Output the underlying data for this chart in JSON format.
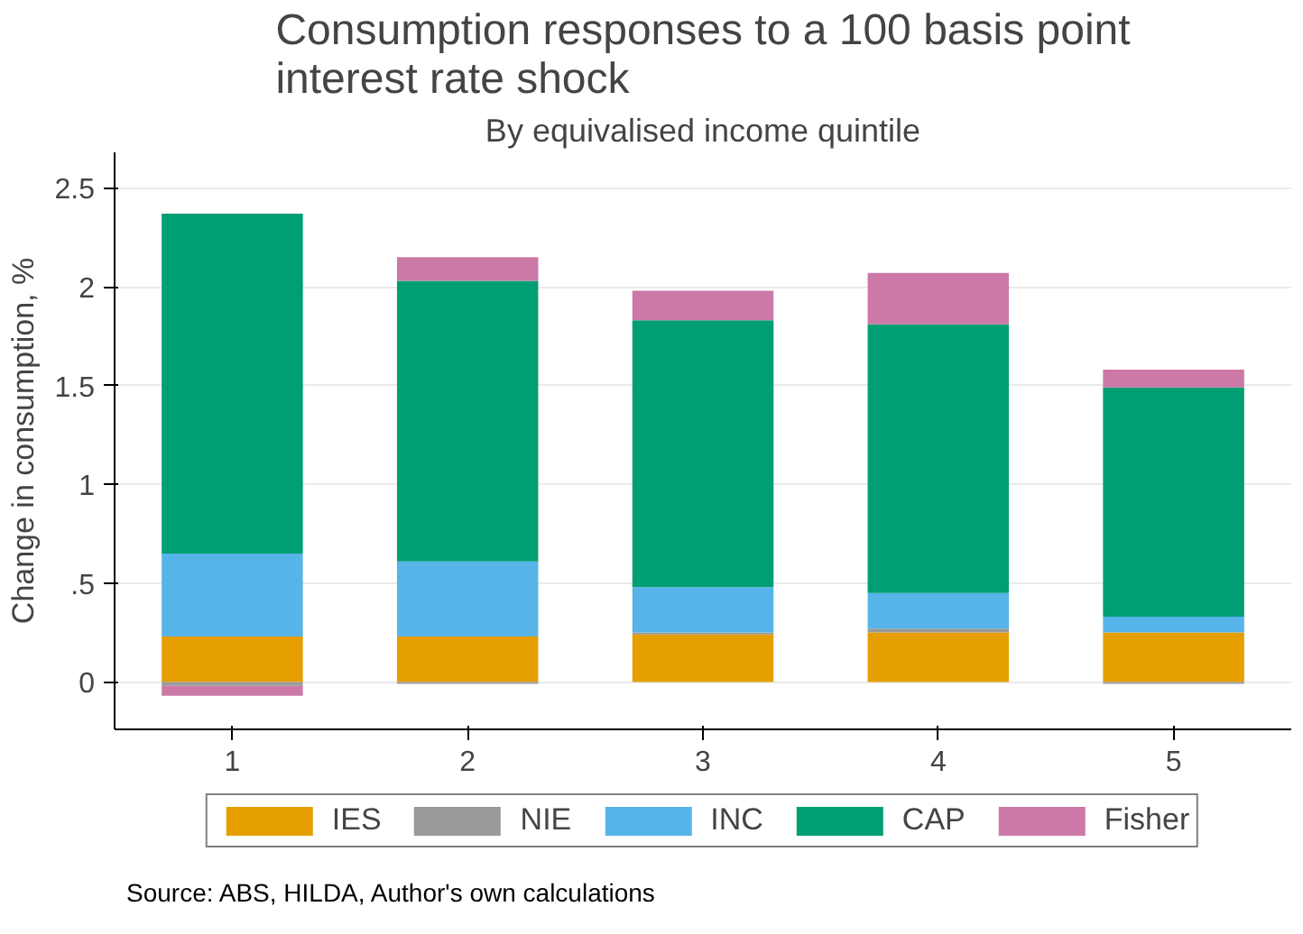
{
  "chart_data": {
    "type": "bar",
    "stacked": true,
    "title": "Consumption responses to a 100 basis point\ninterest rate shock",
    "subtitle": "By equivalised income quintile",
    "ylabel": "Change in consumption, %",
    "categories": [
      "1",
      "2",
      "3",
      "4",
      "5"
    ],
    "series": [
      {
        "name": "IES",
        "color": "#e69f00",
        "values": [
          0.23,
          0.23,
          0.24,
          0.25,
          0.25
        ]
      },
      {
        "name": "NIE",
        "color": "#999999",
        "values": [
          -0.02,
          -0.01,
          0.01,
          0.02,
          -0.01
        ]
      },
      {
        "name": "INC",
        "color": "#56b4e9",
        "values": [
          0.42,
          0.38,
          0.23,
          0.18,
          0.08
        ]
      },
      {
        "name": "CAP",
        "color": "#009e73",
        "values": [
          1.72,
          1.42,
          1.35,
          1.36,
          1.16
        ]
      },
      {
        "name": "Fisher",
        "color": "#cc79a7",
        "values": [
          -0.05,
          0.12,
          0.15,
          0.26,
          0.09
        ]
      }
    ],
    "ylim": [
      -0.24,
      2.68
    ],
    "yticks": [
      0,
      {
        "value": 0.5,
        "label": ".5"
      },
      1,
      1.5,
      2,
      2.5
    ],
    "grid": "y",
    "legend": "bottom",
    "annotations": [
      "Source: ABS, HILDA, Author's own calculations"
    ]
  }
}
